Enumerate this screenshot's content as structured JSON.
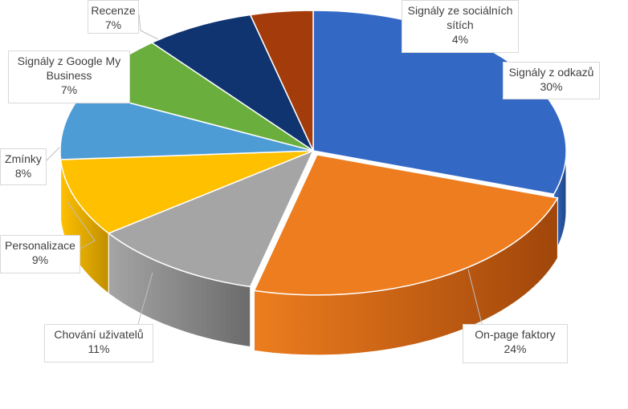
{
  "chart_data": {
    "type": "pie",
    "style": "3d-exploded-pie",
    "title": "",
    "slices": [
      {
        "label_lines": [
          "Signály z odkazů"
        ],
        "pct_label": "30%",
        "value": 30,
        "color": "#3468C5",
        "side_color": "#1F4785"
      },
      {
        "label_lines": [
          "On-page faktory"
        ],
        "pct_label": "24%",
        "value": 24,
        "color": "#ED7D1F",
        "side_color": "#A0460A"
      },
      {
        "label_lines": [
          "Chování uživatelů"
        ],
        "pct_label": "11%",
        "value": 11,
        "color": "#A5A5A5",
        "side_color": "#6B6B6B"
      },
      {
        "label_lines": [
          "Personalizace"
        ],
        "pct_label": "9%",
        "value": 9,
        "color": "#FFC000",
        "side_color": "#C08F00"
      },
      {
        "label_lines": [
          "Zmínky"
        ],
        "pct_label": "8%",
        "value": 8,
        "color": "#4E9CD6",
        "side_color": "#2E6E9E"
      },
      {
        "label_lines": [
          "Signály z Google My",
          "Business"
        ],
        "pct_label": "7%",
        "value": 7,
        "color": "#6AAE3D",
        "side_color": "#467A25"
      },
      {
        "label_lines": [
          "Recenze"
        ],
        "pct_label": "7%",
        "value": 7,
        "color": "#0F3470",
        "side_color": "#0A2450"
      },
      {
        "label_lines": [
          "Signály ze sociálních",
          "sítích"
        ],
        "pct_label": "4%",
        "value": 4,
        "color": "#A33B0A",
        "side_color": "#6E2606"
      }
    ]
  }
}
